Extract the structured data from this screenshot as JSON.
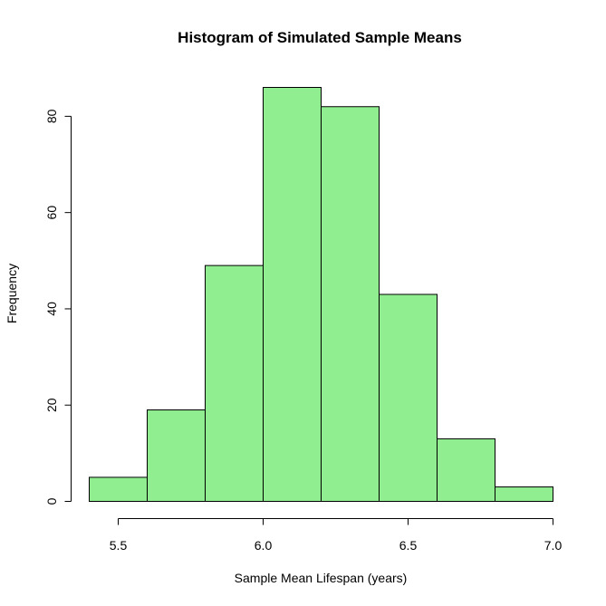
{
  "chart_data": {
    "type": "bar",
    "subtype": "histogram",
    "title": "Histogram of Simulated Sample Means",
    "xlabel": "Sample Mean Lifespan (years)",
    "ylabel": "Frequency",
    "bin_edges": [
      5.4,
      5.6,
      5.8,
      6.0,
      6.2,
      6.4,
      6.6,
      6.8,
      7.0
    ],
    "values": [
      5,
      19,
      49,
      86,
      82,
      43,
      13,
      3
    ],
    "xlim": [
      5.4,
      7.0
    ],
    "ylim": [
      0,
      86
    ],
    "x_ticks": [
      5.5,
      6.0,
      6.5,
      7.0
    ],
    "x_tick_labels": [
      "5.5",
      "6.0",
      "6.5",
      "7.0"
    ],
    "y_ticks": [
      0,
      20,
      40,
      60,
      80
    ],
    "y_tick_labels": [
      "0",
      "20",
      "40",
      "60",
      "80"
    ],
    "grid": false,
    "legend": "none",
    "bar_color": "#90EE90",
    "edge_color": "#000000"
  }
}
